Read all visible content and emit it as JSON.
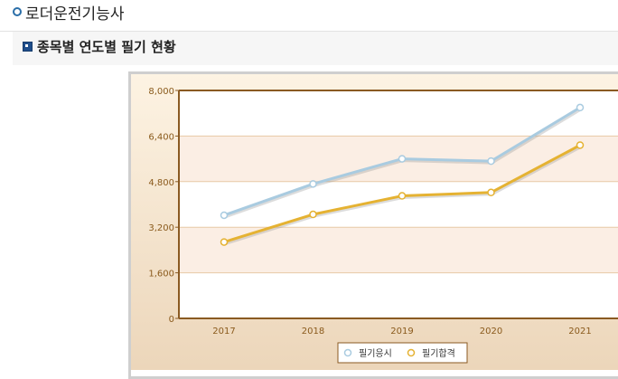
{
  "header": {
    "title": "로더운전기능사"
  },
  "section": {
    "title": "종목별 연도별 필기 현황"
  },
  "chart_data": {
    "type": "line",
    "categories": [
      "2017",
      "2018",
      "2019",
      "2020",
      "2021"
    ],
    "series": [
      {
        "name": "필기응시",
        "values": [
          3620,
          4720,
          5600,
          5520,
          7400
        ],
        "color": "#a9cbe0"
      },
      {
        "name": "필기합격",
        "values": [
          2680,
          3650,
          4300,
          4420,
          6080
        ],
        "color": "#e5b232"
      }
    ],
    "yticks": [
      0,
      1600,
      3200,
      4800,
      6400,
      8000
    ],
    "ytick_labels": [
      "0",
      "1,600",
      "3,200",
      "4,800",
      "6,400",
      "8,000"
    ],
    "ylim": [
      0,
      8000
    ],
    "grid": true,
    "legend_position": "bottom"
  }
}
